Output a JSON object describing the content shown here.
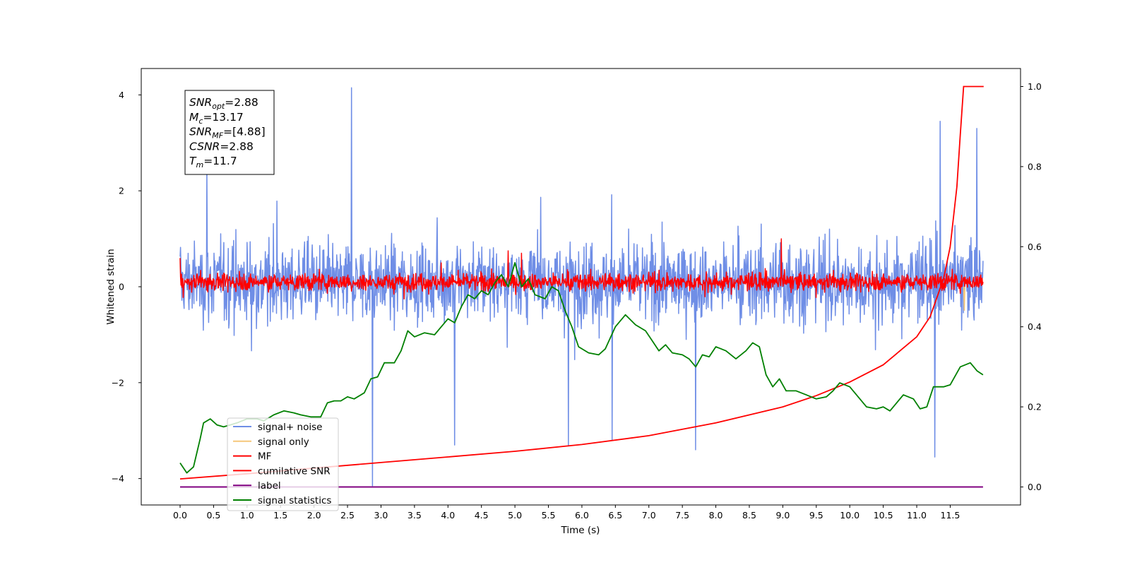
{
  "chart_data": {
    "type": "line",
    "xlabel": "Time (s)",
    "ylabel": "Whitened strain",
    "xlim": [
      -0.58,
      12.55
    ],
    "ylim": [
      -4.55,
      4.55
    ],
    "y2lim": [
      -0.045,
      1.045
    ],
    "x_ticks": [
      0.0,
      0.5,
      1.0,
      1.5,
      2.0,
      2.5,
      3.0,
      3.5,
      4.0,
      4.5,
      5.0,
      5.5,
      6.0,
      6.5,
      7.0,
      7.5,
      8.0,
      8.5,
      9.0,
      9.5,
      10.0,
      10.5,
      11.0,
      11.5
    ],
    "x_tick_labels": [
      "0.0",
      "0.5",
      "1.0",
      "1.5",
      "2.0",
      "2.5",
      "3.0",
      "3.5",
      "4.0",
      "4.5",
      "5.0",
      "5.5",
      "6.0",
      "6.5",
      "7.0",
      "7.5",
      "8.0",
      "8.5",
      "9.0",
      "9.5",
      "10.0",
      "10.5",
      "11.0",
      "11.5"
    ],
    "y_ticks": [
      -4,
      -2,
      0,
      2,
      4
    ],
    "y_tick_labels": [
      "−4",
      "−2",
      "0",
      "2",
      "4"
    ],
    "y2_ticks": [
      0.0,
      0.2,
      0.4,
      0.6,
      0.8,
      1.0
    ],
    "y2_tick_labels": [
      "0.0",
      "0.2",
      "0.4",
      "0.6",
      "0.8",
      "1.0"
    ],
    "stats_box": [
      {
        "base": "SNR",
        "sub": "opt",
        "rest": "=2.88"
      },
      {
        "base": "M",
        "sub": "c",
        "rest": "=13.17"
      },
      {
        "base": "SNR",
        "sub": "MF",
        "rest": "=[4.88]"
      },
      {
        "base": "CSNR",
        "sub": "",
        "rest": "=2.88"
      },
      {
        "base": "T",
        "sub": "m",
        "rest": "=11.7"
      }
    ],
    "legend": [
      {
        "label": "signal+ noise",
        "color": "#6f8ee6"
      },
      {
        "label": "signal only",
        "color": "#f5c77a"
      },
      {
        "label": "MF",
        "color": "#ff0000"
      },
      {
        "label": "cumilative SNR",
        "color": "#ff0000"
      },
      {
        "label": "label",
        "color": "#800080"
      },
      {
        "label": "signal statistics",
        "color": "#008000"
      }
    ],
    "series": [
      {
        "name": "signal+ noise",
        "axis": "left",
        "color": "#6f8ee6",
        "x_range": [
          0.0,
          11.99
        ],
        "sample_count": 1800,
        "band_typical": [
          -1.5,
          1.7
        ],
        "extremes": [
          {
            "x": 2.56,
            "y": 4.15
          },
          {
            "x": 2.87,
            "y": -4.15
          },
          {
            "x": 11.35,
            "y": 3.45
          },
          {
            "x": 11.9,
            "y": 3.3
          },
          {
            "x": 11.27,
            "y": -3.55
          },
          {
            "x": 7.7,
            "y": -3.4
          },
          {
            "x": 0.4,
            "y": 2.5
          },
          {
            "x": 6.45,
            "y": -3.2
          },
          {
            "x": 4.1,
            "y": -3.3
          },
          {
            "x": 5.8,
            "y": -3.3
          }
        ]
      },
      {
        "name": "MF",
        "axis": "left",
        "color": "#ff0000",
        "x_range": [
          0.0,
          11.99
        ],
        "sample_count": 1800,
        "band_typical": [
          -0.25,
          0.45
        ],
        "extremes": [
          {
            "x": 8.98,
            "y": 1.0
          },
          {
            "x": 0.0,
            "y": 0.6
          },
          {
            "x": 4.9,
            "y": 0.75
          },
          {
            "x": 5.1,
            "y": 0.7
          }
        ]
      },
      {
        "name": "signal only",
        "axis": "left",
        "color": "#f5c77a",
        "points": [
          [
            11.7,
            0.0
          ],
          [
            11.71,
            -0.5
          ],
          [
            11.72,
            0.0
          ]
        ]
      },
      {
        "name": "cumilative SNR",
        "axis": "right",
        "color": "#ff0000",
        "points": [
          [
            0.0,
            0.02
          ],
          [
            1.0,
            0.033
          ],
          [
            2.0,
            0.047
          ],
          [
            3.0,
            0.061
          ],
          [
            4.0,
            0.075
          ],
          [
            5.0,
            0.089
          ],
          [
            6.0,
            0.106
          ],
          [
            7.0,
            0.128
          ],
          [
            8.0,
            0.16
          ],
          [
            9.0,
            0.2
          ],
          [
            9.5,
            0.228
          ],
          [
            10.0,
            0.262
          ],
          [
            10.5,
            0.305
          ],
          [
            11.0,
            0.375
          ],
          [
            11.2,
            0.425
          ],
          [
            11.4,
            0.52
          ],
          [
            11.5,
            0.6
          ],
          [
            11.6,
            0.75
          ],
          [
            11.65,
            0.88
          ],
          [
            11.7,
            1.0
          ],
          [
            12.0,
            1.0
          ]
        ]
      },
      {
        "name": "label",
        "axis": "right",
        "color": "#800080",
        "points": [
          [
            0.0,
            0.0
          ],
          [
            11.99,
            0.0
          ]
        ]
      },
      {
        "name": "signal statistics",
        "axis": "right",
        "color": "#008000",
        "points": [
          [
            0.0,
            0.06
          ],
          [
            0.1,
            0.035
          ],
          [
            0.2,
            0.05
          ],
          [
            0.3,
            0.12
          ],
          [
            0.35,
            0.16
          ],
          [
            0.45,
            0.17
          ],
          [
            0.55,
            0.155
          ],
          [
            0.65,
            0.15
          ],
          [
            0.75,
            0.155
          ],
          [
            0.85,
            0.16
          ],
          [
            1.0,
            0.17
          ],
          [
            1.15,
            0.17
          ],
          [
            1.25,
            0.165
          ],
          [
            1.4,
            0.18
          ],
          [
            1.55,
            0.19
          ],
          [
            1.7,
            0.185
          ],
          [
            1.8,
            0.18
          ],
          [
            1.95,
            0.175
          ],
          [
            2.1,
            0.175
          ],
          [
            2.2,
            0.21
          ],
          [
            2.3,
            0.215
          ],
          [
            2.4,
            0.215
          ],
          [
            2.5,
            0.225
          ],
          [
            2.6,
            0.22
          ],
          [
            2.75,
            0.235
          ],
          [
            2.85,
            0.27
          ],
          [
            2.95,
            0.275
          ],
          [
            3.05,
            0.31
          ],
          [
            3.2,
            0.31
          ],
          [
            3.3,
            0.34
          ],
          [
            3.4,
            0.39
          ],
          [
            3.5,
            0.375
          ],
          [
            3.65,
            0.385
          ],
          [
            3.8,
            0.38
          ],
          [
            3.9,
            0.4
          ],
          [
            4.0,
            0.42
          ],
          [
            4.1,
            0.41
          ],
          [
            4.2,
            0.45
          ],
          [
            4.3,
            0.48
          ],
          [
            4.4,
            0.47
          ],
          [
            4.5,
            0.49
          ],
          [
            4.6,
            0.48
          ],
          [
            4.7,
            0.51
          ],
          [
            4.8,
            0.53
          ],
          [
            4.9,
            0.5
          ],
          [
            5.0,
            0.56
          ],
          [
            5.1,
            0.5
          ],
          [
            5.2,
            0.52
          ],
          [
            5.3,
            0.48
          ],
          [
            5.45,
            0.47
          ],
          [
            5.55,
            0.5
          ],
          [
            5.65,
            0.49
          ],
          [
            5.75,
            0.44
          ],
          [
            5.85,
            0.4
          ],
          [
            5.95,
            0.35
          ],
          [
            6.1,
            0.335
          ],
          [
            6.25,
            0.33
          ],
          [
            6.35,
            0.345
          ],
          [
            6.5,
            0.4
          ],
          [
            6.65,
            0.43
          ],
          [
            6.8,
            0.405
          ],
          [
            6.95,
            0.39
          ],
          [
            7.05,
            0.365
          ],
          [
            7.15,
            0.34
          ],
          [
            7.25,
            0.355
          ],
          [
            7.35,
            0.335
          ],
          [
            7.5,
            0.33
          ],
          [
            7.6,
            0.32
          ],
          [
            7.7,
            0.3
          ],
          [
            7.8,
            0.33
          ],
          [
            7.9,
            0.325
          ],
          [
            8.0,
            0.35
          ],
          [
            8.15,
            0.34
          ],
          [
            8.3,
            0.32
          ],
          [
            8.45,
            0.34
          ],
          [
            8.55,
            0.36
          ],
          [
            8.65,
            0.35
          ],
          [
            8.75,
            0.28
          ],
          [
            8.85,
            0.25
          ],
          [
            8.95,
            0.27
          ],
          [
            9.05,
            0.24
          ],
          [
            9.2,
            0.24
          ],
          [
            9.35,
            0.23
          ],
          [
            9.5,
            0.22
          ],
          [
            9.65,
            0.225
          ],
          [
            9.75,
            0.24
          ],
          [
            9.85,
            0.26
          ],
          [
            10.0,
            0.25
          ],
          [
            10.1,
            0.23
          ],
          [
            10.25,
            0.2
          ],
          [
            10.4,
            0.195
          ],
          [
            10.5,
            0.2
          ],
          [
            10.6,
            0.19
          ],
          [
            10.7,
            0.21
          ],
          [
            10.8,
            0.23
          ],
          [
            10.95,
            0.22
          ],
          [
            11.05,
            0.195
          ],
          [
            11.15,
            0.2
          ],
          [
            11.25,
            0.25
          ],
          [
            11.4,
            0.25
          ],
          [
            11.5,
            0.255
          ],
          [
            11.65,
            0.3
          ],
          [
            11.8,
            0.31
          ],
          [
            11.9,
            0.29
          ],
          [
            11.99,
            0.28
          ]
        ]
      }
    ]
  }
}
